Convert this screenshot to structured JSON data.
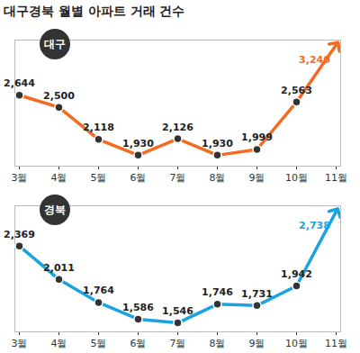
{
  "title": "대구경북 월별 아파트 거래 건수",
  "chart_data": [
    {
      "type": "line",
      "categories": [
        "3월",
        "4월",
        "5월",
        "6월",
        "7월",
        "8월",
        "9월",
        "10월",
        "11월"
      ],
      "series": [
        {
          "name": "대구",
          "color": "#f26b21",
          "marker": "circle",
          "values": [
            2644,
            2500,
            2118,
            1930,
            2126,
            1930,
            1999,
            2563,
            3240
          ],
          "value_labels": [
            "2,644",
            "2,500",
            "2,118",
            "1,930",
            "2,126",
            "1,930",
            "1,999",
            "2,563",
            "3,240"
          ]
        }
      ],
      "ylim": [
        1800,
        3300
      ],
      "data_labels": true,
      "tick_labels": "x"
    },
    {
      "type": "line",
      "categories": [
        "3월",
        "4월",
        "5월",
        "6월",
        "7월",
        "8월",
        "9월",
        "10월",
        "11월"
      ],
      "series": [
        {
          "name": "경북",
          "color": "#1aa3e0",
          "marker": "circle",
          "values": [
            2369,
            2011,
            1764,
            1586,
            1546,
            1746,
            1731,
            1942,
            2738
          ],
          "value_labels": [
            "2,369",
            "2,011",
            "1,764",
            "1,586",
            "1,546",
            "1,746",
            "1,731",
            "1,942",
            "2,738"
          ]
        }
      ],
      "ylim": [
        1450,
        2800
      ],
      "data_labels": true,
      "tick_labels": "x"
    }
  ]
}
